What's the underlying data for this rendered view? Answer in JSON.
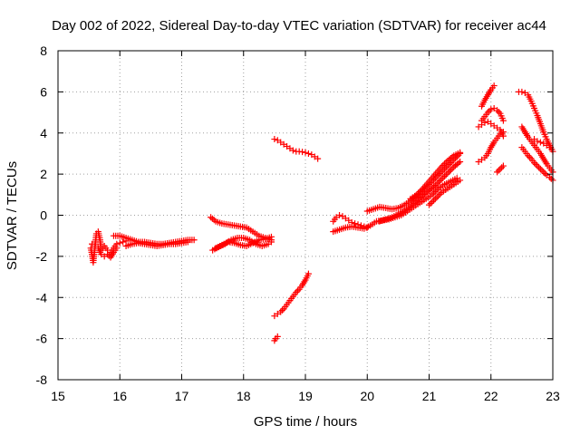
{
  "chart_data": {
    "type": "scatter",
    "title": "Day 002 of 2022, Sidereal Day-to-day VTEC variation (SDTVAR) for receiver ac44",
    "xlabel": "GPS time / hours",
    "ylabel": "SDTVAR / TECUs",
    "xlim": [
      15,
      23
    ],
    "ylim": [
      -8,
      8
    ],
    "xticks": [
      15,
      16,
      17,
      18,
      19,
      20,
      21,
      22,
      23
    ],
    "yticks": [
      -8,
      -6,
      -4,
      -2,
      0,
      2,
      4,
      6,
      8
    ],
    "grid": true,
    "marker": "plus",
    "color": "#ff0000",
    "segments": [
      {
        "points": [
          [
            15.53,
            -1.6
          ],
          [
            15.55,
            -1.9
          ],
          [
            15.57,
            -2.3
          ],
          [
            15.6,
            -1.5
          ],
          [
            15.62,
            -0.9
          ],
          [
            15.65,
            -0.8
          ],
          [
            15.68,
            -1.2
          ],
          [
            15.7,
            -1.7
          ],
          [
            15.75,
            -1.5
          ],
          [
            15.8,
            -1.7
          ],
          [
            15.85,
            -1.8
          ],
          [
            15.9,
            -1.6
          ],
          [
            15.95,
            -1.4
          ],
          [
            16.0,
            -1.35
          ],
          [
            16.05,
            -1.3
          ],
          [
            16.1,
            -1.25
          ]
        ]
      },
      {
        "points": [
          [
            15.55,
            -1.4
          ],
          [
            15.6,
            -1.5
          ],
          [
            15.65,
            -1.6
          ],
          [
            15.7,
            -1.9
          ],
          [
            15.75,
            -2.0
          ],
          [
            15.8,
            -1.9
          ],
          [
            15.85,
            -2.05
          ],
          [
            15.9,
            -1.8
          ],
          [
            15.95,
            -1.6
          ]
        ]
      },
      {
        "points": [
          [
            15.9,
            -1.0
          ],
          [
            16.0,
            -1.0
          ],
          [
            16.1,
            -1.1
          ],
          [
            16.2,
            -1.2
          ],
          [
            16.3,
            -1.3
          ],
          [
            16.4,
            -1.3
          ],
          [
            16.5,
            -1.35
          ],
          [
            16.6,
            -1.4
          ],
          [
            16.7,
            -1.4
          ],
          [
            16.8,
            -1.35
          ],
          [
            16.9,
            -1.3
          ],
          [
            17.0,
            -1.25
          ],
          [
            17.1,
            -1.2
          ],
          [
            17.2,
            -1.2
          ]
        ]
      },
      {
        "points": [
          [
            16.1,
            -1.5
          ],
          [
            16.2,
            -1.4
          ],
          [
            16.3,
            -1.35
          ],
          [
            16.4,
            -1.4
          ],
          [
            16.5,
            -1.45
          ],
          [
            16.6,
            -1.5
          ],
          [
            16.7,
            -1.45
          ],
          [
            16.8,
            -1.4
          ],
          [
            16.9,
            -1.4
          ],
          [
            17.0,
            -1.35
          ],
          [
            17.1,
            -1.3
          ]
        ]
      },
      {
        "points": [
          [
            17.47,
            -0.1
          ],
          [
            17.55,
            -0.3
          ],
          [
            17.65,
            -0.4
          ],
          [
            17.75,
            -0.45
          ],
          [
            17.85,
            -0.5
          ],
          [
            17.95,
            -0.55
          ],
          [
            18.05,
            -0.6
          ],
          [
            18.15,
            -0.8
          ],
          [
            18.25,
            -1.0
          ],
          [
            18.35,
            -1.1
          ],
          [
            18.45,
            -1.2
          ]
        ]
      },
      {
        "points": [
          [
            17.5,
            -1.7
          ],
          [
            17.6,
            -1.55
          ],
          [
            17.7,
            -1.4
          ],
          [
            17.8,
            -1.2
          ],
          [
            17.9,
            -1.1
          ],
          [
            18.0,
            -1.1
          ],
          [
            18.1,
            -1.2
          ],
          [
            18.2,
            -1.4
          ],
          [
            18.3,
            -1.5
          ],
          [
            18.4,
            -1.4
          ],
          [
            18.45,
            -1.3
          ]
        ]
      },
      {
        "points": [
          [
            17.55,
            -1.6
          ],
          [
            17.65,
            -1.45
          ],
          [
            17.75,
            -1.3
          ],
          [
            17.85,
            -1.35
          ],
          [
            17.95,
            -1.45
          ],
          [
            18.05,
            -1.5
          ],
          [
            18.15,
            -1.35
          ],
          [
            18.25,
            -1.2
          ],
          [
            18.35,
            -1.15
          ],
          [
            18.45,
            -1.05
          ]
        ]
      },
      {
        "points": [
          [
            18.5,
            3.7
          ],
          [
            18.55,
            3.65
          ],
          [
            18.6,
            3.55
          ],
          [
            18.65,
            3.45
          ],
          [
            18.7,
            3.35
          ],
          [
            18.75,
            3.25
          ],
          [
            18.8,
            3.15
          ],
          [
            18.85,
            3.1
          ],
          [
            18.9,
            3.1
          ],
          [
            18.95,
            3.08
          ],
          [
            19.0,
            3.05
          ],
          [
            19.05,
            3.0
          ],
          [
            19.1,
            2.95
          ],
          [
            19.15,
            2.85
          ],
          [
            19.2,
            2.75
          ]
        ]
      },
      {
        "points": [
          [
            18.5,
            -6.1
          ],
          [
            18.52,
            -6.0
          ],
          [
            18.55,
            -5.9
          ]
        ]
      },
      {
        "points": [
          [
            18.5,
            -4.9
          ],
          [
            18.55,
            -4.8
          ],
          [
            18.6,
            -4.7
          ],
          [
            18.65,
            -4.55
          ],
          [
            18.7,
            -4.35
          ],
          [
            18.75,
            -4.15
          ],
          [
            18.8,
            -3.95
          ],
          [
            18.85,
            -3.75
          ],
          [
            18.9,
            -3.6
          ],
          [
            18.95,
            -3.4
          ],
          [
            19.0,
            -3.15
          ],
          [
            19.05,
            -2.85
          ]
        ]
      },
      {
        "points": [
          [
            19.45,
            -0.3
          ],
          [
            19.5,
            -0.1
          ],
          [
            19.55,
            0.0
          ],
          [
            19.6,
            -0.05
          ],
          [
            19.65,
            -0.15
          ],
          [
            19.7,
            -0.25
          ],
          [
            19.75,
            -0.35
          ],
          [
            19.8,
            -0.4
          ],
          [
            19.85,
            -0.45
          ],
          [
            19.9,
            -0.5
          ],
          [
            19.95,
            -0.55
          ],
          [
            20.0,
            -0.6
          ]
        ]
      },
      {
        "points": [
          [
            19.45,
            -0.8
          ],
          [
            19.55,
            -0.7
          ],
          [
            19.65,
            -0.6
          ],
          [
            19.75,
            -0.55
          ],
          [
            19.85,
            -0.6
          ],
          [
            19.95,
            -0.65
          ],
          [
            20.05,
            -0.5
          ],
          [
            20.15,
            -0.3
          ],
          [
            20.25,
            -0.25
          ],
          [
            20.35,
            -0.2
          ],
          [
            20.45,
            -0.1
          ],
          [
            20.55,
            0.0
          ],
          [
            20.65,
            0.2
          ],
          [
            20.75,
            0.4
          ],
          [
            20.85,
            0.6
          ],
          [
            20.95,
            0.8
          ],
          [
            21.05,
            1.0
          ],
          [
            21.15,
            1.3
          ],
          [
            21.25,
            1.5
          ],
          [
            21.35,
            1.65
          ],
          [
            21.45,
            1.8
          ]
        ]
      },
      {
        "points": [
          [
            20.0,
            0.2
          ],
          [
            20.1,
            0.3
          ],
          [
            20.2,
            0.4
          ],
          [
            20.3,
            0.35
          ],
          [
            20.4,
            0.3
          ],
          [
            20.5,
            0.35
          ],
          [
            20.6,
            0.5
          ],
          [
            20.7,
            0.7
          ],
          [
            20.8,
            0.95
          ],
          [
            20.9,
            1.2
          ],
          [
            21.0,
            1.5
          ],
          [
            21.1,
            1.8
          ],
          [
            21.2,
            2.1
          ],
          [
            21.3,
            2.4
          ],
          [
            21.4,
            2.7
          ],
          [
            21.5,
            3.0
          ]
        ]
      },
      {
        "points": [
          [
            20.2,
            -0.3
          ],
          [
            20.3,
            -0.2
          ],
          [
            20.4,
            -0.1
          ],
          [
            20.5,
            0.05
          ],
          [
            20.6,
            0.25
          ],
          [
            20.7,
            0.45
          ],
          [
            20.8,
            0.7
          ],
          [
            20.9,
            0.95
          ],
          [
            21.0,
            1.2
          ],
          [
            21.1,
            1.45
          ],
          [
            21.2,
            1.75
          ],
          [
            21.3,
            2.05
          ],
          [
            21.4,
            2.35
          ],
          [
            21.5,
            2.6
          ]
        ]
      },
      {
        "points": [
          [
            20.7,
            0.8
          ],
          [
            20.8,
            1.0
          ],
          [
            20.9,
            1.3
          ],
          [
            21.0,
            1.65
          ],
          [
            21.1,
            2.0
          ],
          [
            21.2,
            2.35
          ],
          [
            21.3,
            2.65
          ],
          [
            21.4,
            2.9
          ],
          [
            21.5,
            3.05
          ]
        ]
      },
      {
        "points": [
          [
            21.0,
            0.5
          ],
          [
            21.1,
            0.8
          ],
          [
            21.2,
            1.1
          ],
          [
            21.3,
            1.3
          ],
          [
            21.4,
            1.5
          ],
          [
            21.5,
            1.7
          ]
        ]
      },
      {
        "points": [
          [
            21.8,
            2.6
          ],
          [
            21.85,
            2.7
          ],
          [
            21.9,
            2.8
          ],
          [
            21.95,
            3.0
          ],
          [
            22.0,
            3.3
          ],
          [
            22.05,
            3.55
          ],
          [
            22.1,
            3.75
          ],
          [
            22.15,
            3.95
          ],
          [
            22.2,
            4.05
          ]
        ]
      },
      {
        "points": [
          [
            21.8,
            4.3
          ],
          [
            21.85,
            4.4
          ],
          [
            21.9,
            4.5
          ],
          [
            21.95,
            4.55
          ],
          [
            22.0,
            4.45
          ],
          [
            22.05,
            4.35
          ],
          [
            22.1,
            4.25
          ],
          [
            22.15,
            4.15
          ],
          [
            22.2,
            3.85
          ]
        ]
      },
      {
        "points": [
          [
            21.85,
            4.6
          ],
          [
            21.9,
            4.8
          ],
          [
            21.95,
            5.0
          ],
          [
            22.0,
            5.15
          ],
          [
            22.05,
            5.2
          ],
          [
            22.1,
            5.1
          ],
          [
            22.15,
            4.95
          ],
          [
            22.2,
            4.6
          ]
        ]
      },
      {
        "points": [
          [
            21.85,
            5.3
          ],
          [
            21.9,
            5.6
          ],
          [
            21.95,
            5.85
          ],
          [
            22.0,
            6.1
          ],
          [
            22.05,
            6.3
          ]
        ]
      },
      {
        "points": [
          [
            22.1,
            2.1
          ],
          [
            22.15,
            2.25
          ],
          [
            22.2,
            2.4
          ]
        ]
      },
      {
        "points": [
          [
            22.45,
            6.0
          ],
          [
            22.5,
            6.0
          ],
          [
            22.55,
            5.95
          ],
          [
            22.6,
            5.85
          ],
          [
            22.65,
            5.55
          ],
          [
            22.7,
            5.2
          ],
          [
            22.75,
            4.85
          ],
          [
            22.8,
            4.45
          ],
          [
            22.85,
            4.05
          ],
          [
            22.9,
            3.7
          ],
          [
            22.95,
            3.4
          ],
          [
            23.0,
            3.1
          ]
        ]
      },
      {
        "points": [
          [
            22.5,
            4.3
          ],
          [
            22.55,
            4.05
          ],
          [
            22.6,
            3.8
          ],
          [
            22.65,
            3.6
          ],
          [
            22.7,
            3.4
          ],
          [
            22.75,
            3.2
          ],
          [
            22.8,
            3.0
          ],
          [
            22.85,
            2.75
          ],
          [
            22.9,
            2.5
          ],
          [
            22.95,
            2.3
          ],
          [
            23.0,
            2.1
          ]
        ]
      },
      {
        "points": [
          [
            22.5,
            3.3
          ],
          [
            22.55,
            3.1
          ],
          [
            22.6,
            2.9
          ],
          [
            22.65,
            2.75
          ],
          [
            22.7,
            2.55
          ],
          [
            22.75,
            2.4
          ],
          [
            22.8,
            2.25
          ],
          [
            22.85,
            2.1
          ],
          [
            22.9,
            1.95
          ],
          [
            22.95,
            1.85
          ],
          [
            23.0,
            1.7
          ]
        ]
      },
      {
        "points": [
          [
            22.7,
            3.7
          ],
          [
            22.75,
            3.6
          ],
          [
            22.8,
            3.55
          ],
          [
            22.85,
            3.5
          ],
          [
            22.9,
            3.4
          ],
          [
            22.95,
            3.3
          ]
        ]
      }
    ]
  }
}
